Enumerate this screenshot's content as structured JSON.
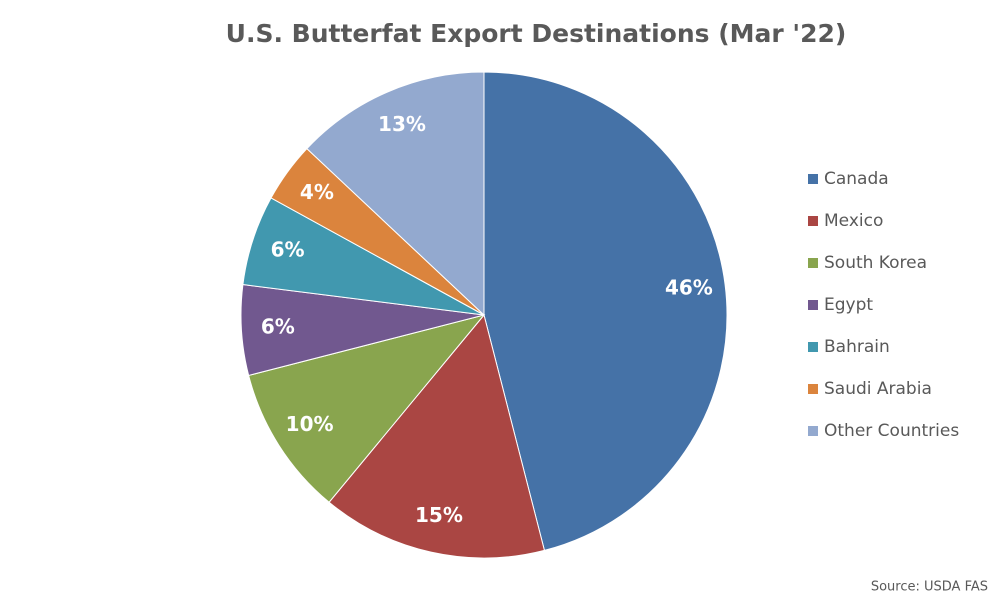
{
  "chart_data": {
    "type": "pie",
    "title": "U.S. Butterfat Export Destinations (Mar '22)",
    "categories": [
      "Canada",
      "Mexico",
      "South Korea",
      "Egypt",
      "Bahrain",
      "Saudi Arabia",
      "Other Countries"
    ],
    "values": [
      46,
      15,
      10,
      6,
      6,
      4,
      13
    ],
    "value_labels": [
      "46%",
      "15%",
      "10%",
      "6%",
      "6%",
      "4%",
      "13%"
    ],
    "colors": [
      "#4572a7",
      "#aa4643",
      "#89a54e",
      "#71588f",
      "#4198af",
      "#db843d",
      "#93a9cf"
    ],
    "legend": "right",
    "source": "Source: USDA FAS"
  }
}
